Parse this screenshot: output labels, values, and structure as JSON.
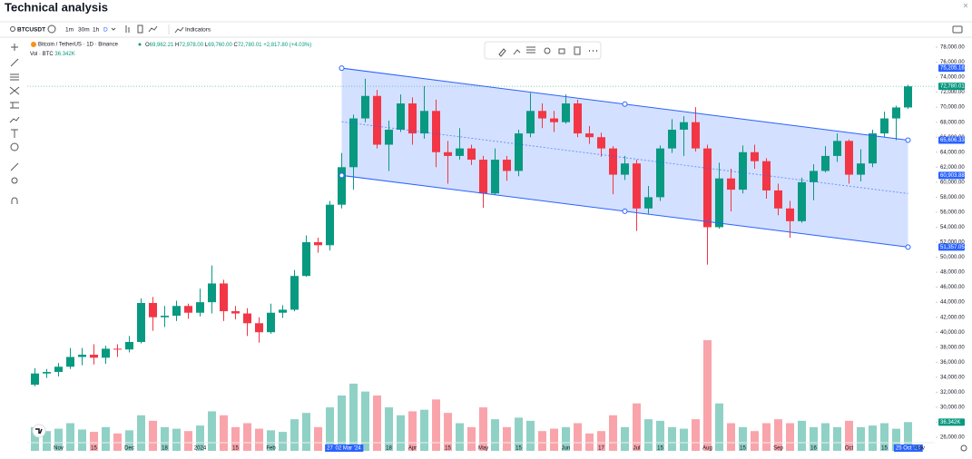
{
  "header": {
    "title": "Technical analysis",
    "close": "×"
  },
  "toolbar": {
    "symbol": "BTCUSDT",
    "intervals": [
      "1m",
      "30m",
      "1h",
      "D"
    ],
    "indicators": "Indicators"
  },
  "chart_data": {
    "type": "candlestick",
    "symbol_title": "Bitcoin / TetherUS · 1D · Binance",
    "legend": [
      {
        "key": "O",
        "text": "69,962.21"
      },
      {
        "key": "H",
        "text": "72,978.00"
      },
      {
        "key": "L",
        "text": "69,760.00"
      },
      {
        "key": "C",
        "text": "72,780.01"
      }
    ],
    "change": "+2,817.80 (+4.03%)",
    "volume_title": "Vol · BTC",
    "volume_label": "36.342K",
    "categories": [
      null,
      null,
      "Nov",
      null,
      null,
      "15",
      null,
      null,
      "Dec",
      null,
      null,
      "18",
      null,
      null,
      "2024",
      null,
      null,
      "15",
      null,
      null,
      "Feb",
      null,
      null,
      null,
      null,
      "27",
      "02 Mar '24",
      null,
      null,
      null,
      "18",
      null,
      "Apr",
      null,
      null,
      "15",
      null,
      null,
      "May",
      null,
      null,
      "15",
      null,
      null,
      null,
      "Jun",
      null,
      null,
      "17",
      null,
      null,
      "Jul",
      null,
      "15",
      null,
      null,
      null,
      "Aug",
      null,
      null,
      "15",
      null,
      null,
      "Sep",
      null,
      null,
      "16",
      null,
      null,
      "Oct",
      null,
      null,
      "15",
      null,
      "25 Oct '24",
      "Nov"
    ],
    "highlighted_categories": [
      25,
      26,
      74
    ],
    "open": [
      33000,
      34500,
      34700,
      35400,
      36700,
      37000,
      36600,
      37800,
      37700,
      38700,
      43900,
      42000,
      42200,
      43500,
      42600,
      44000,
      46500,
      42800,
      42500,
      41200,
      40000,
      42600,
      43000,
      47500,
      52000,
      51600,
      57000,
      62000,
      68500,
      71500,
      65000,
      67000,
      70500,
      66500,
      69500,
      64000,
      63500,
      64500,
      63000,
      58500,
      63000,
      61500,
      66500,
      69500,
      68500,
      68000,
      70500,
      66500,
      66000,
      64500,
      61000,
      62500,
      56500,
      58000,
      64500,
      67000,
      68000,
      64500,
      54000,
      60500,
      59000,
      64000,
      62800,
      58900,
      56500,
      54800,
      60000,
      61500,
      63500,
      65500,
      61000,
      62500,
      66500,
      68500,
      69962.21,
      null
    ],
    "high": [
      35200,
      35100,
      35900,
      37900,
      37900,
      38400,
      38200,
      38400,
      39500,
      44500,
      44700,
      43500,
      44200,
      43800,
      45800,
      48900,
      47000,
      43500,
      43200,
      42000,
      43800,
      43600,
      48300,
      52900,
      52600,
      57500,
      63900,
      69000,
      73800,
      72300,
      68200,
      71700,
      71300,
      72800,
      71000,
      65500,
      67200,
      65000,
      63500,
      64500,
      63500,
      67000,
      71900,
      70500,
      69500,
      71700,
      71000,
      67500,
      66600,
      64800,
      63500,
      63000,
      59500,
      64900,
      68400,
      68800,
      70000,
      65000,
      62600,
      61800,
      64900,
      65000,
      63200,
      59800,
      57500,
      60600,
      62400,
      64800,
      66500,
      65700,
      64400,
      67000,
      69400,
      70200,
      72978,
      null
    ],
    "low": [
      32800,
      33900,
      34100,
      35100,
      35600,
      35700,
      35800,
      36700,
      37300,
      38500,
      40200,
      40700,
      41500,
      41800,
      42100,
      42500,
      41500,
      41700,
      39500,
      38600,
      39800,
      41900,
      42800,
      47400,
      50600,
      50900,
      56500,
      59000,
      68000,
      64500,
      61500,
      66700,
      65000,
      65800,
      62000,
      59800,
      63000,
      62300,
      56600,
      58300,
      60200,
      60800,
      66000,
      67200,
      66700,
      67800,
      66000,
      65100,
      63400,
      58400,
      60300,
      53500,
      55800,
      57500,
      63900,
      63500,
      64100,
      49000,
      53800,
      56100,
      58500,
      61800,
      57800,
      55600,
      52600,
      54600,
      57600,
      61300,
      62700,
      59800,
      60100,
      62000,
      66000,
      65600,
      69760,
      null
    ],
    "close": [
      34500,
      34700,
      35400,
      36700,
      37000,
      36600,
      37800,
      37700,
      38700,
      43900,
      42000,
      42200,
      43500,
      42600,
      44000,
      46500,
      42800,
      42500,
      41200,
      40000,
      42600,
      43000,
      47500,
      52000,
      51600,
      57000,
      62000,
      68500,
      71500,
      65000,
      67000,
      70500,
      66500,
      69500,
      64000,
      63500,
      64500,
      63000,
      58500,
      63000,
      61500,
      66500,
      69500,
      68500,
      68000,
      70500,
      66500,
      66000,
      64500,
      61000,
      62500,
      56500,
      58000,
      64500,
      67000,
      68000,
      64500,
      54000,
      60500,
      59000,
      64000,
      62800,
      58900,
      56500,
      54800,
      60000,
      61500,
      63500,
      65500,
      61000,
      62500,
      66500,
      68500,
      69962.21,
      72780.01,
      null
    ],
    "volume": [
      30000,
      25000,
      28000,
      35000,
      27000,
      24000,
      30000,
      22000,
      26000,
      45000,
      38000,
      30000,
      28000,
      25000,
      32000,
      50000,
      45000,
      30000,
      35000,
      28000,
      26000,
      24000,
      40000,
      48000,
      30000,
      55000,
      70000,
      85000,
      75000,
      70000,
      55000,
      45000,
      50000,
      52000,
      65000,
      48000,
      35000,
      30000,
      55000,
      40000,
      30000,
      42000,
      38000,
      25000,
      28000,
      30000,
      35000,
      22000,
      25000,
      45000,
      30000,
      60000,
      40000,
      38000,
      30000,
      28000,
      40000,
      140000,
      60000,
      35000,
      30000,
      25000,
      35000,
      40000,
      35000,
      38000,
      30000,
      35000,
      30000,
      38000,
      30000,
      32000,
      35000,
      28000,
      36342,
      null
    ],
    "up_color": "#089981",
    "down_color": "#f23645",
    "last_price_label": "72,780.01",
    "channel": {
      "x": [
        "02 Mar '24",
        "25 Oct '24"
      ],
      "upper": [
        75205.16,
        65606.33
      ],
      "lower": [
        60903.88,
        51357.05
      ],
      "upper_labels": [
        "75,205.16",
        "65,606.33"
      ],
      "lower_labels": [
        "60,903.88",
        "51,357.05"
      ],
      "color": "#2962ff"
    },
    "ylim": [
      26000,
      78000
    ],
    "yticks": [
      {
        "value": 78000,
        "label": "78,000.00"
      },
      {
        "value": 76000,
        "label": "76,000.00"
      },
      {
        "value": 74000,
        "label": "74,000.00"
      },
      {
        "value": 72000,
        "label": "72,000.00"
      },
      {
        "value": 70000,
        "label": "70,000.00"
      },
      {
        "value": 68000,
        "label": "68,000.00"
      },
      {
        "value": 66000,
        "label": "66,000.00"
      },
      {
        "value": 64000,
        "label": "64,000.00"
      },
      {
        "value": 62000,
        "label": "62,000.00"
      },
      {
        "value": 60000,
        "label": "60,000.00"
      },
      {
        "value": 58000,
        "label": "58,000.00"
      },
      {
        "value": 56000,
        "label": "56,000.00"
      },
      {
        "value": 54000,
        "label": "54,000.00"
      },
      {
        "value": 52000,
        "label": "52,000.00"
      },
      {
        "value": 50000,
        "label": "50,000.00"
      },
      {
        "value": 48000,
        "label": "48,000.00"
      },
      {
        "value": 46000,
        "label": "46,000.00"
      },
      {
        "value": 44000,
        "label": "44,000.00"
      },
      {
        "value": 42000,
        "label": "42,000.00"
      },
      {
        "value": 40000,
        "label": "40,000.00"
      },
      {
        "value": 38000,
        "label": "38,000.00"
      },
      {
        "value": 36000,
        "label": "36,000.00"
      },
      {
        "value": 34000,
        "label": "34,000.00"
      },
      {
        "value": 32000,
        "label": "32,000.00"
      },
      {
        "value": 30000,
        "label": "30,000.00"
      },
      {
        "value": 28000,
        "label": "28,000.00"
      },
      {
        "value": 26000,
        "label": "26,000.00"
      }
    ],
    "grid": false
  }
}
